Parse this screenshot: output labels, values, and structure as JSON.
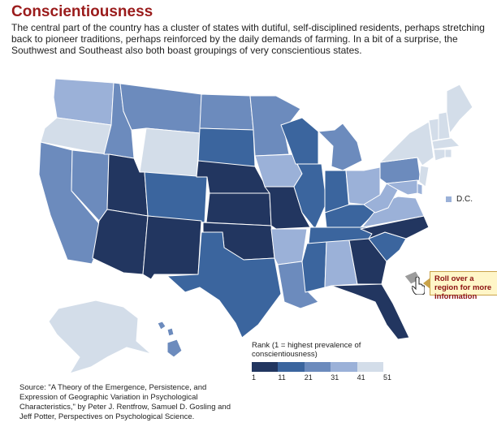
{
  "title": "Conscientiousness",
  "intro": "The central part of the country has a cluster of states with dutiful, self-disciplined residents, perhaps stretching back to pioneer traditions, perhaps reinforced by the daily demands of farming. In a bit of a surprise, the Southwest and Southeast also both boast groupings of very conscientious states.",
  "map": {
    "metric": "Rank (1 = highest prevalence of conscientiousness)",
    "rank_classes": [
      {
        "from": 1,
        "to": 10,
        "color": "#223660"
      },
      {
        "from": 11,
        "to": 20,
        "color": "#3b659e"
      },
      {
        "from": 21,
        "to": 30,
        "color": "#6c8bbd"
      },
      {
        "from": 31,
        "to": 40,
        "color": "#9bb1d8"
      },
      {
        "from": 41,
        "to": 51,
        "color": "#d3dde9"
      }
    ],
    "states": {
      "Washington": 4,
      "Oregon": 5,
      "California": 3,
      "Nevada": 3,
      "Idaho": 3,
      "Montana": 3,
      "Wyoming": 5,
      "Utah": 1,
      "Arizona": 1,
      "Colorado": 2,
      "New Mexico": 1,
      "North Dakota": 3,
      "South Dakota": 2,
      "Nebraska": 1,
      "Kansas": 1,
      "Oklahoma": 1,
      "Texas": 2,
      "Minnesota": 3,
      "Iowa": 4,
      "Missouri": 1,
      "Arkansas": 4,
      "Louisiana": 3,
      "Wisconsin": 2,
      "Illinois": 2,
      "Michigan": 3,
      "Indiana": 2,
      "Ohio": 4,
      "Kentucky": 2,
      "Tennessee": 2,
      "Mississippi": 2,
      "Alabama": 4,
      "Georgia": 1,
      "Florida": 1,
      "South Carolina": 2,
      "North Carolina": 1,
      "Virginia": 4,
      "West Virginia": 4,
      "Pennsylvania": 3,
      "New York": 5,
      "Vermont": 5,
      "New Hampshire": 5,
      "Maine": 5,
      "Massachusetts": 5,
      "Connecticut": 5,
      "Rhode Island": 5,
      "New Jersey": 5,
      "Delaware": 4,
      "Maryland": 4,
      "Alaska": 5,
      "Hawaii": 3,
      "D.C.": 4
    },
    "dc_label": "D.C.",
    "dc_color": "#9bb1d8"
  },
  "rollover": {
    "label": "Roll over a region for more information"
  },
  "legend": {
    "title": "Rank (1 = highest prevalence of conscientiousness)",
    "ticks": [
      "1",
      "11",
      "21",
      "31",
      "41",
      "51"
    ],
    "colors": [
      "#223660",
      "#3b659e",
      "#6c8bbd",
      "#9bb1d8",
      "#d3dde9"
    ]
  },
  "source": "Source: \"A Theory of the Emergence, Persistence, and Expression of Geographic Variation in Psychological Characteristics,\" by Peter J. Rentfrow, Samuel D. Gosling and Jeff Potter, Perspectives on Psychological Science."
}
